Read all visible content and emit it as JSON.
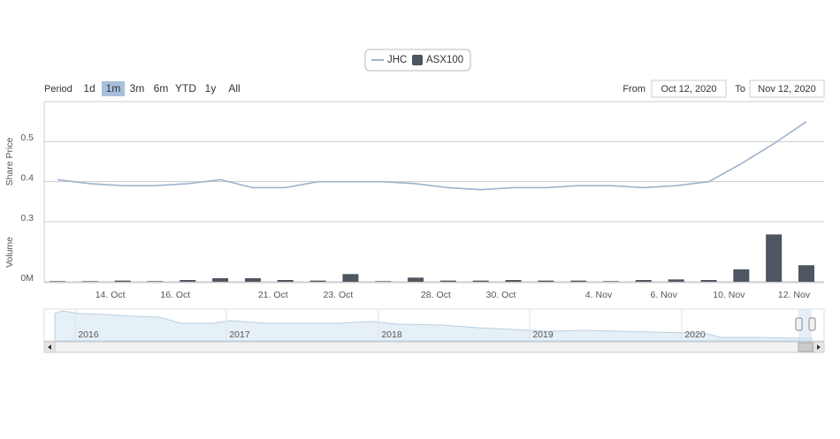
{
  "range_selector": {
    "label": "Period",
    "buttons": [
      "1d",
      "1m",
      "3m",
      "6m",
      "YTD",
      "1y",
      "All"
    ],
    "selected": 1,
    "from_label": "From",
    "from_value": "Oct 12, 2020",
    "to_label": "To",
    "to_value": "Nov 12, 2020"
  },
  "chart_data": [
    {
      "type": "line",
      "y_label": "Share Price",
      "categories": [
        null,
        null,
        "14. Oct",
        null,
        "16. Oct",
        null,
        null,
        "21. Oct",
        null,
        "23. Oct",
        null,
        null,
        "28. Oct",
        null,
        "30. Oct",
        null,
        null,
        "4. Nov",
        null,
        "6. Nov",
        null,
        "10. Nov",
        null,
        "12. Nov"
      ],
      "series": [
        {
          "name": "JHC",
          "color": "#9fb2cc",
          "values": [
            0.405,
            0.395,
            0.39,
            0.39,
            0.395,
            0.405,
            0.385,
            0.385,
            0.4,
            0.4,
            0.4,
            0.395,
            0.385,
            0.38,
            0.385,
            0.385,
            0.39,
            0.39,
            0.385,
            0.39,
            0.4,
            0.445,
            0.495,
            0.55
          ]
        }
      ],
      "ylim": [
        0.3,
        0.6
      ],
      "yticks": [
        0.3,
        0.4,
        0.5
      ],
      "grid": true
    },
    {
      "type": "bar",
      "y_label": "Volume",
      "series": [
        {
          "name": "ASX100",
          "color": "#4d5661",
          "values": [
            0.05,
            0.05,
            0.1,
            0.05,
            0.15,
            0.3,
            0.3,
            0.15,
            0.1,
            0.65,
            0.05,
            0.35,
            0.1,
            0.1,
            0.15,
            0.1,
            0.1,
            0.05,
            0.15,
            0.2,
            0.15,
            1.05,
            4.0,
            1.4
          ]
        }
      ],
      "ylim": [
        0,
        5
      ],
      "yticks": [
        {
          "value": 0,
          "label": "0M"
        }
      ]
    }
  ],
  "navigator": {
    "years": [
      "2016",
      "2017",
      "2018",
      "2019",
      "2020"
    ]
  }
}
